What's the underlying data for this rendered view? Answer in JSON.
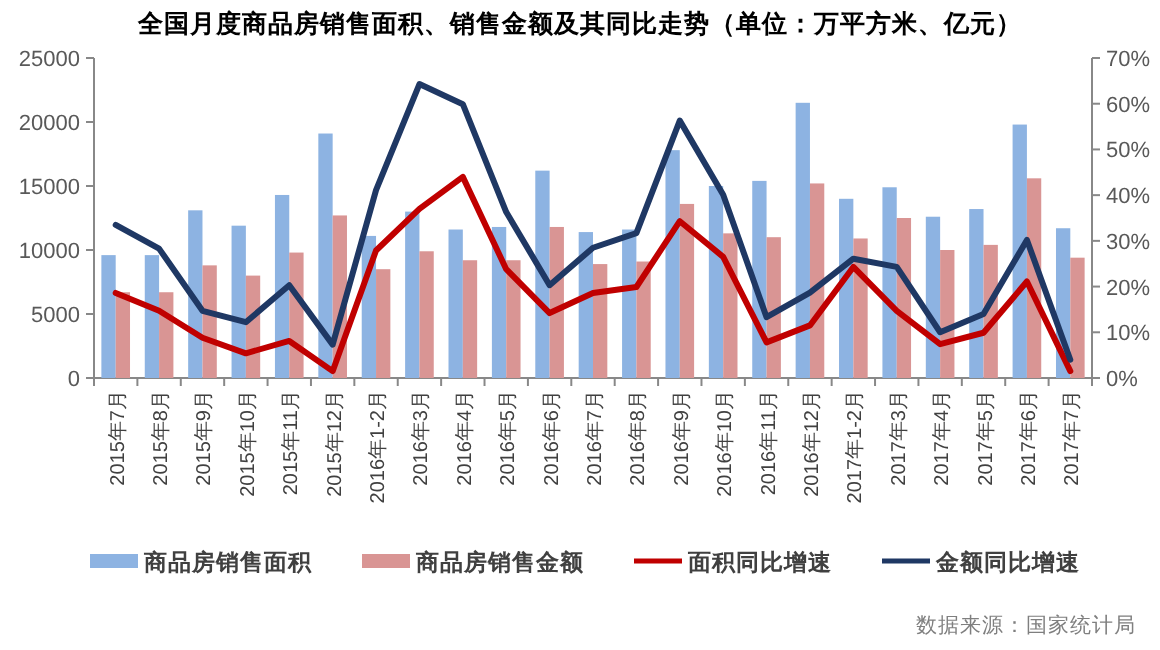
{
  "chart_data": {
    "type": "bar",
    "title": "全国月度商品房销售面积、销售金额及其同比走势（单位：万平方米、亿元）",
    "categories": [
      "2015年7月",
      "2015年8月",
      "2015年9月",
      "2015年10月",
      "2015年11月",
      "2015年12月",
      "2016年1-2月",
      "2016年3月",
      "2016年4月",
      "2016年5月",
      "2016年6月",
      "2016年7月",
      "2016年8月",
      "2016年9月",
      "2016年10月",
      "2016年11月",
      "2016年12月",
      "2017年1-2月",
      "2017年3月",
      "2017年4月",
      "2017年5月",
      "2017年6月",
      "2017年7月"
    ],
    "series": [
      {
        "name": "商品房销售面积",
        "color": "#8db3e2",
        "values": [
          9600,
          9600,
          13100,
          11900,
          14300,
          19100,
          11100,
          13000,
          11600,
          11800,
          16200,
          11400,
          11600,
          17800,
          15000,
          15400,
          21500,
          14000,
          14900,
          12600,
          13200,
          19800,
          11700
        ]
      },
      {
        "name": "商品房销售金额",
        "color": "#d99594",
        "values": [
          6700,
          6700,
          8800,
          8000,
          9800,
          12700,
          8500,
          9900,
          9200,
          9200,
          11800,
          8900,
          9100,
          13600,
          11300,
          11000,
          15200,
          10900,
          12500,
          10000,
          10400,
          15600,
          9400
        ]
      },
      {
        "name": "面积同比增速",
        "type": "line",
        "axis": "y2",
        "color": "#c00000",
        "values": [
          18.6,
          14.7,
          8.8,
          5.4,
          8.1,
          1.5,
          27.9,
          37.0,
          44.0,
          23.8,
          14.2,
          18.6,
          19.9,
          34.3,
          26.5,
          7.8,
          11.5,
          24.3,
          14.7,
          7.4,
          9.9,
          21.1,
          1.5
        ]
      },
      {
        "name": "金额同比增速",
        "type": "line",
        "axis": "y2",
        "color": "#1f3864",
        "values": [
          33.5,
          28.3,
          14.7,
          12.2,
          20.3,
          7.3,
          41.1,
          64.3,
          59.9,
          36.3,
          20.3,
          28.5,
          31.7,
          56.3,
          40.1,
          13.3,
          18.7,
          26.1,
          24.3,
          10.0,
          14.0,
          30.2,
          4.0
        ]
      }
    ],
    "ylim": [
      0,
      25000
    ],
    "yticks": [
      0,
      5000,
      10000,
      15000,
      20000,
      25000
    ],
    "y2lim": [
      0,
      70
    ],
    "y2ticks": [
      {
        "value": 0,
        "label": "0%"
      },
      {
        "value": 10,
        "label": "10%"
      },
      {
        "value": 20,
        "label": "20%"
      },
      {
        "value": 30,
        "label": "30%"
      },
      {
        "value": 40,
        "label": "40%"
      },
      {
        "value": 50,
        "label": "50%"
      },
      {
        "value": 60,
        "label": "60%"
      },
      {
        "value": 70,
        "label": "70%"
      }
    ],
    "legend": "bottom",
    "grid": false,
    "annotations": [
      "数据来源：国家统计局"
    ]
  }
}
